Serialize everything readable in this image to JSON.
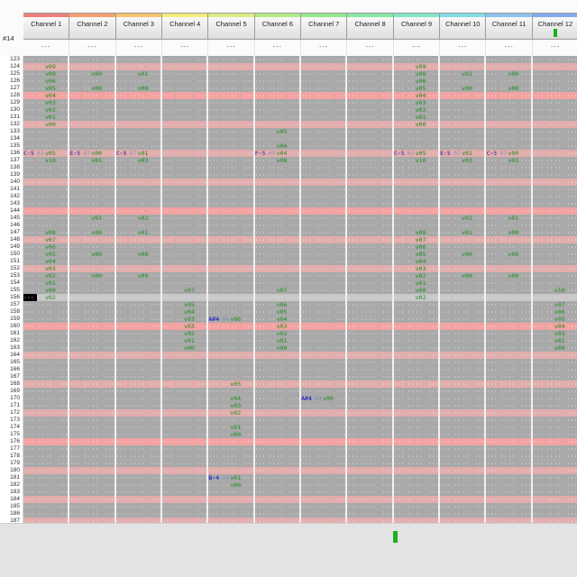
{
  "window_title": "Pattern Editor",
  "colors": {
    "grid_bg": "#a9a9a9",
    "row_minor_highlight": "#e2adad",
    "row_major_highlight": "#f3a2a2",
    "cursor_row_bg": "#c8c8c8",
    "cursor_cell_bg": "#000000",
    "note_purple": "#5f4ba8",
    "note_blue": "#2c2cc8",
    "instrument_color": "#7f97bb",
    "volume_color": "#1f8f1f",
    "vu_green": "#1fae1f"
  },
  "pattern": {
    "number_label": "#14",
    "sub_header_label": "---",
    "row_start": 123,
    "row_end": 186,
    "partial_row": 187,
    "highlight_minor_every": 4,
    "highlight_major_every": 16,
    "cursor": {
      "row": 156,
      "channel": 1,
      "column": "note"
    },
    "empty_cell": {
      "note": "···",
      "instrument": "··",
      "volume": "··",
      "effect": "···"
    },
    "volume_prefix": "v",
    "channels": [
      {
        "label": "Channel 1",
        "color": "#ee7f7a",
        "vu": false
      },
      {
        "label": "Channel 2",
        "color": "#f3a06e",
        "vu": false
      },
      {
        "label": "Channel 3",
        "color": "#f6c46e",
        "vu": false
      },
      {
        "label": "Channel 4",
        "color": "#f4ec78",
        "vu": false
      },
      {
        "label": "Channel 5",
        "color": "#d8ee84",
        "vu": false
      },
      {
        "label": "Channel 6",
        "color": "#b2ea84",
        "vu": false
      },
      {
        "label": "Channel 7",
        "color": "#92e88c",
        "vu": false
      },
      {
        "label": "Channel 8",
        "color": "#84e8a4",
        "vu": false
      },
      {
        "label": "Channel 9",
        "color": "#82e6c6",
        "vu": false
      },
      {
        "label": "Channel 10",
        "color": "#82dce4",
        "vu": false
      },
      {
        "label": "Channel 11",
        "color": "#8ec2ee",
        "vu": false
      },
      {
        "label": "Channel 12",
        "color": "#84aaec",
        "vu": true
      }
    ],
    "cells": [
      {
        "r": 124,
        "c": 1,
        "v": "09"
      },
      {
        "r": 125,
        "c": 1,
        "v": "08"
      },
      {
        "r": 126,
        "c": 1,
        "v": "06"
      },
      {
        "r": 127,
        "c": 1,
        "v": "05"
      },
      {
        "r": 128,
        "c": 1,
        "v": "04"
      },
      {
        "r": 129,
        "c": 1,
        "v": "03"
      },
      {
        "r": 130,
        "c": 1,
        "v": "02"
      },
      {
        "r": 131,
        "c": 1,
        "v": "01"
      },
      {
        "r": 132,
        "c": 1,
        "v": "00"
      },
      {
        "r": 136,
        "c": 1,
        "n": "C-5",
        "i": "01",
        "v": "05"
      },
      {
        "r": 137,
        "c": 1,
        "v": "10"
      },
      {
        "r": 147,
        "c": 1,
        "v": "08"
      },
      {
        "r": 148,
        "c": 1,
        "v": "07"
      },
      {
        "r": 149,
        "c": 1,
        "v": "06"
      },
      {
        "r": 150,
        "c": 1,
        "v": "05"
      },
      {
        "r": 151,
        "c": 1,
        "v": "04"
      },
      {
        "r": 152,
        "c": 1,
        "v": "03"
      },
      {
        "r": 153,
        "c": 1,
        "v": "02"
      },
      {
        "r": 154,
        "c": 1,
        "v": "01"
      },
      {
        "r": 155,
        "c": 1,
        "v": "00"
      },
      {
        "r": 156,
        "c": 1,
        "v": "02"
      },
      {
        "r": 125,
        "c": 2,
        "v": "00"
      },
      {
        "r": 127,
        "c": 2,
        "v": "00"
      },
      {
        "r": 136,
        "c": 2,
        "n": "E-5",
        "i": "07",
        "v": "00"
      },
      {
        "r": 137,
        "c": 2,
        "v": "01"
      },
      {
        "r": 145,
        "c": 2,
        "v": "01"
      },
      {
        "r": 147,
        "c": 2,
        "v": "00"
      },
      {
        "r": 150,
        "c": 2,
        "v": "00"
      },
      {
        "r": 153,
        "c": 2,
        "v": "00"
      },
      {
        "r": 125,
        "c": 3,
        "v": "01"
      },
      {
        "r": 127,
        "c": 3,
        "v": "00"
      },
      {
        "r": 136,
        "c": 3,
        "n": "C-5",
        "i": "07",
        "v": "01"
      },
      {
        "r": 137,
        "c": 3,
        "v": "03"
      },
      {
        "r": 145,
        "c": 3,
        "v": "02"
      },
      {
        "r": 147,
        "c": 3,
        "v": "01"
      },
      {
        "r": 150,
        "c": 3,
        "v": "00"
      },
      {
        "r": 153,
        "c": 3,
        "v": "00"
      },
      {
        "r": 155,
        "c": 4,
        "v": "07"
      },
      {
        "r": 157,
        "c": 4,
        "v": "05"
      },
      {
        "r": 158,
        "c": 4,
        "v": "04"
      },
      {
        "r": 159,
        "c": 4,
        "v": "03"
      },
      {
        "r": 160,
        "c": 4,
        "v": "03"
      },
      {
        "r": 161,
        "c": 4,
        "v": "02"
      },
      {
        "r": 162,
        "c": 4,
        "v": "01"
      },
      {
        "r": 163,
        "c": 4,
        "v": "00"
      },
      {
        "r": 159,
        "c": 5,
        "n": "A#4",
        "i": "04",
        "v": "06",
        "k": "b"
      },
      {
        "r": 168,
        "c": 5,
        "v": "05"
      },
      {
        "r": 170,
        "c": 5,
        "v": "04"
      },
      {
        "r": 171,
        "c": 5,
        "v": "03"
      },
      {
        "r": 172,
        "c": 5,
        "v": "02"
      },
      {
        "r": 174,
        "c": 5,
        "v": "01"
      },
      {
        "r": 175,
        "c": 5,
        "v": "00"
      },
      {
        "r": 181,
        "c": 5,
        "n": "B-4",
        "i": "04",
        "v": "01",
        "k": "b"
      },
      {
        "r": 182,
        "c": 5,
        "v": "06"
      },
      {
        "r": 133,
        "c": 6,
        "v": "05"
      },
      {
        "r": 135,
        "c": 6,
        "v": "04"
      },
      {
        "r": 136,
        "c": 6,
        "n": "F-5",
        "i": "05",
        "v": "04"
      },
      {
        "r": 137,
        "c": 6,
        "v": "08"
      },
      {
        "r": 155,
        "c": 6,
        "v": "07"
      },
      {
        "r": 157,
        "c": 6,
        "v": "06"
      },
      {
        "r": 158,
        "c": 6,
        "v": "05"
      },
      {
        "r": 159,
        "c": 6,
        "v": "04"
      },
      {
        "r": 160,
        "c": 6,
        "v": "03"
      },
      {
        "r": 161,
        "c": 6,
        "v": "02"
      },
      {
        "r": 162,
        "c": 6,
        "v": "01"
      },
      {
        "r": 163,
        "c": 6,
        "v": "00"
      },
      {
        "r": 170,
        "c": 7,
        "n": "A#4",
        "i": "04",
        "v": "00",
        "k": "b"
      },
      {
        "r": 124,
        "c": 9,
        "v": "09"
      },
      {
        "r": 125,
        "c": 9,
        "v": "08"
      },
      {
        "r": 126,
        "c": 9,
        "v": "06"
      },
      {
        "r": 127,
        "c": 9,
        "v": "05"
      },
      {
        "r": 128,
        "c": 9,
        "v": "04"
      },
      {
        "r": 129,
        "c": 9,
        "v": "03"
      },
      {
        "r": 130,
        "c": 9,
        "v": "02"
      },
      {
        "r": 131,
        "c": 9,
        "v": "01"
      },
      {
        "r": 132,
        "c": 9,
        "v": "00"
      },
      {
        "r": 136,
        "c": 9,
        "n": "C-5",
        "i": "01",
        "v": "05"
      },
      {
        "r": 137,
        "c": 9,
        "v": "10"
      },
      {
        "r": 147,
        "c": 9,
        "v": "08"
      },
      {
        "r": 148,
        "c": 9,
        "v": "07"
      },
      {
        "r": 149,
        "c": 9,
        "v": "06"
      },
      {
        "r": 150,
        "c": 9,
        "v": "05"
      },
      {
        "r": 151,
        "c": 9,
        "v": "04"
      },
      {
        "r": 152,
        "c": 9,
        "v": "03"
      },
      {
        "r": 153,
        "c": 9,
        "v": "02"
      },
      {
        "r": 154,
        "c": 9,
        "v": "01"
      },
      {
        "r": 155,
        "c": 9,
        "v": "00"
      },
      {
        "r": 156,
        "c": 9,
        "v": "02"
      },
      {
        "r": 125,
        "c": 10,
        "v": "01"
      },
      {
        "r": 127,
        "c": 10,
        "v": "00"
      },
      {
        "r": 136,
        "c": 10,
        "n": "E-5",
        "i": "07",
        "v": "01"
      },
      {
        "r": 137,
        "c": 10,
        "v": "03"
      },
      {
        "r": 145,
        "c": 10,
        "v": "02"
      },
      {
        "r": 147,
        "c": 10,
        "v": "01"
      },
      {
        "r": 150,
        "c": 10,
        "v": "00"
      },
      {
        "r": 153,
        "c": 10,
        "v": "00"
      },
      {
        "r": 125,
        "c": 11,
        "v": "00"
      },
      {
        "r": 127,
        "c": 11,
        "v": "00"
      },
      {
        "r": 136,
        "c": 11,
        "n": "C-5",
        "i": "07",
        "v": "00"
      },
      {
        "r": 137,
        "c": 11,
        "v": "01"
      },
      {
        "r": 145,
        "c": 11,
        "v": "01"
      },
      {
        "r": 147,
        "c": 11,
        "v": "00"
      },
      {
        "r": 150,
        "c": 11,
        "v": "00"
      },
      {
        "r": 153,
        "c": 11,
        "v": "00"
      },
      {
        "r": 155,
        "c": 12,
        "v": "10"
      },
      {
        "r": 157,
        "c": 12,
        "v": "07"
      },
      {
        "r": 158,
        "c": 12,
        "v": "06"
      },
      {
        "r": 159,
        "c": 12,
        "v": "05"
      },
      {
        "r": 160,
        "c": 12,
        "v": "04"
      },
      {
        "r": 161,
        "c": 12,
        "v": "03"
      },
      {
        "r": 162,
        "c": 12,
        "v": "01"
      },
      {
        "r": 163,
        "c": 12,
        "v": "00"
      }
    ]
  },
  "footer": {
    "indicator": "vu-active"
  }
}
